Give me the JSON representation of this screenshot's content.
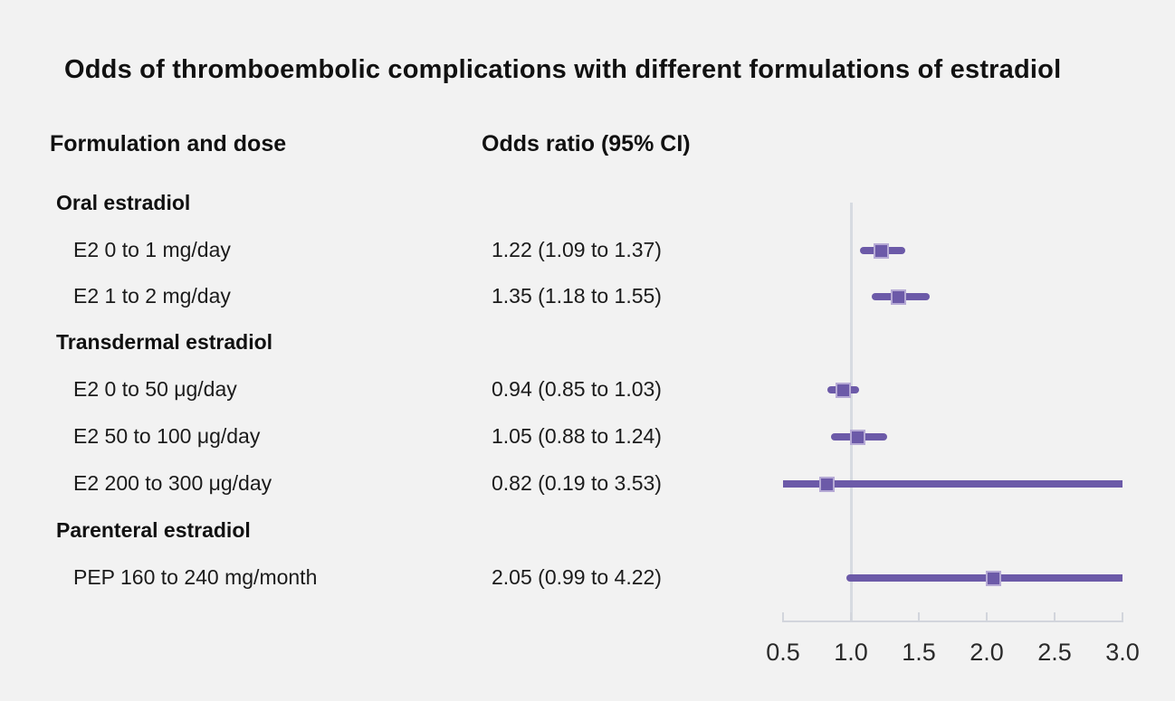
{
  "chart_data": {
    "type": "forest",
    "title": "Odds of thromboembolic complications with different formulations of estradiol",
    "col_headers": {
      "formulation": "Formulation and dose",
      "odds_ratio": "Odds ratio (95% CI)"
    },
    "x_axis": {
      "min": 0.5,
      "max": 3.0,
      "tick_labels": [
        "0.5",
        "1.0",
        "1.5",
        "2.0",
        "2.5",
        "3.0"
      ],
      "tick_values": [
        0.5,
        1.0,
        1.5,
        2.0,
        2.5,
        3.0
      ],
      "reference_line": 1.0
    },
    "groups": [
      {
        "name": "Oral estradiol",
        "items": [
          {
            "label": "E2 0 to 1 mg/day",
            "or_text": "1.22 (1.09 to 1.37)",
            "or": 1.22,
            "ci_low": 1.09,
            "ci_high": 1.37
          },
          {
            "label": "E2 1 to 2 mg/day",
            "or_text": "1.35 (1.18 to 1.55)",
            "or": 1.35,
            "ci_low": 1.18,
            "ci_high": 1.55
          }
        ]
      },
      {
        "name": "Transdermal estradiol",
        "items": [
          {
            "label": "E2 0 to 50 μg/day",
            "or_text": "0.94 (0.85 to 1.03)",
            "or": 0.94,
            "ci_low": 0.85,
            "ci_high": 1.03
          },
          {
            "label": "E2 50 to 100 μg/day",
            "or_text": "1.05 (0.88 to 1.24)",
            "or": 1.05,
            "ci_low": 0.88,
            "ci_high": 1.24
          },
          {
            "label": "E2 200 to 300 μg/day",
            "or_text": "0.82 (0.19 to 3.53)",
            "or": 0.82,
            "ci_low": 0.19,
            "ci_high": 3.53
          }
        ]
      },
      {
        "name": "Parenteral estradiol",
        "items": [
          {
            "label": "PEP 160 to 240 mg/month",
            "or_text": "2.05 (0.99 to 4.22)",
            "or": 2.05,
            "ci_low": 0.99,
            "ci_high": 4.22
          }
        ]
      }
    ],
    "colors": {
      "marker": "#6c5aa8",
      "marker_edge": "#b6aad5",
      "reference_line": "#d7dbe1",
      "axis_line": "#d2d5dc",
      "background": "#f2f2f2",
      "text": "#1b1b1b"
    }
  }
}
